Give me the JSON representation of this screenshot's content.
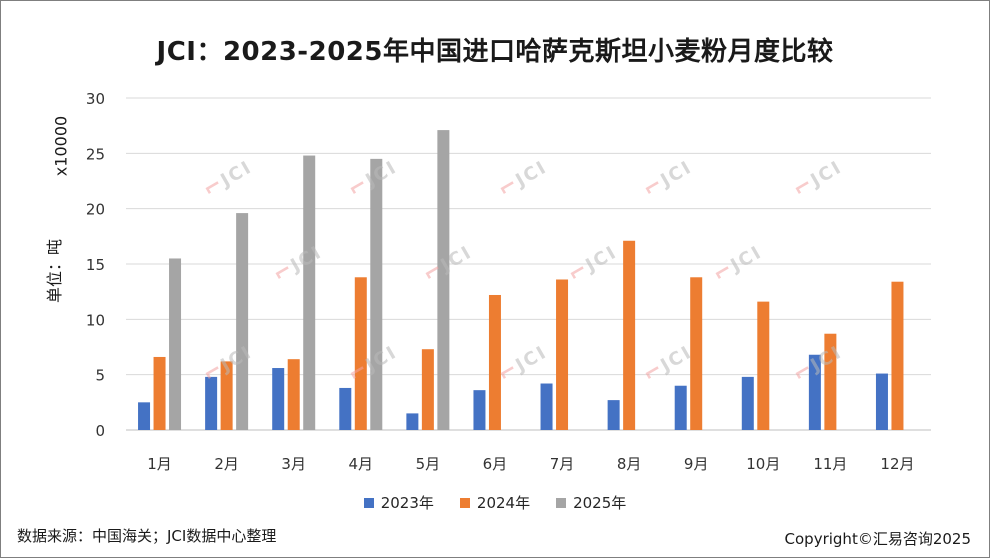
{
  "chart_data": {
    "type": "bar",
    "title": "JCI：2023-2025年中国进口哈萨克斯坦小麦粉月度比较",
    "ylabel": "单位：吨",
    "yunit": "x10000",
    "ylim": [
      0,
      30
    ],
    "yticks": [
      0,
      5,
      10,
      15,
      20,
      25,
      30
    ],
    "grid": true,
    "legend_position": "bottom",
    "categories": [
      "1月",
      "2月",
      "3月",
      "4月",
      "5月",
      "6月",
      "7月",
      "8月",
      "9月",
      "10月",
      "11月",
      "12月"
    ],
    "series": [
      {
        "name": "2023年",
        "color": "#4472c4",
        "values": [
          2.5,
          4.8,
          5.6,
          3.8,
          1.5,
          3.6,
          4.2,
          2.7,
          4.0,
          4.8,
          6.8,
          5.1
        ]
      },
      {
        "name": "2024年",
        "color": "#ed7d31",
        "values": [
          6.6,
          6.2,
          6.4,
          13.8,
          7.3,
          12.2,
          13.6,
          17.1,
          13.8,
          11.6,
          8.7,
          13.4
        ]
      },
      {
        "name": "2025年",
        "color": "#a5a5a5",
        "values": [
          15.5,
          19.6,
          24.8,
          24.5,
          27.1,
          null,
          null,
          null,
          null,
          null,
          null,
          null
        ]
      }
    ]
  },
  "footer": {
    "source": "数据来源：中国海关；JCI数据中心整理",
    "copyright": "Copyright©汇易咨询2025"
  },
  "watermark": {
    "text": "JCI"
  }
}
